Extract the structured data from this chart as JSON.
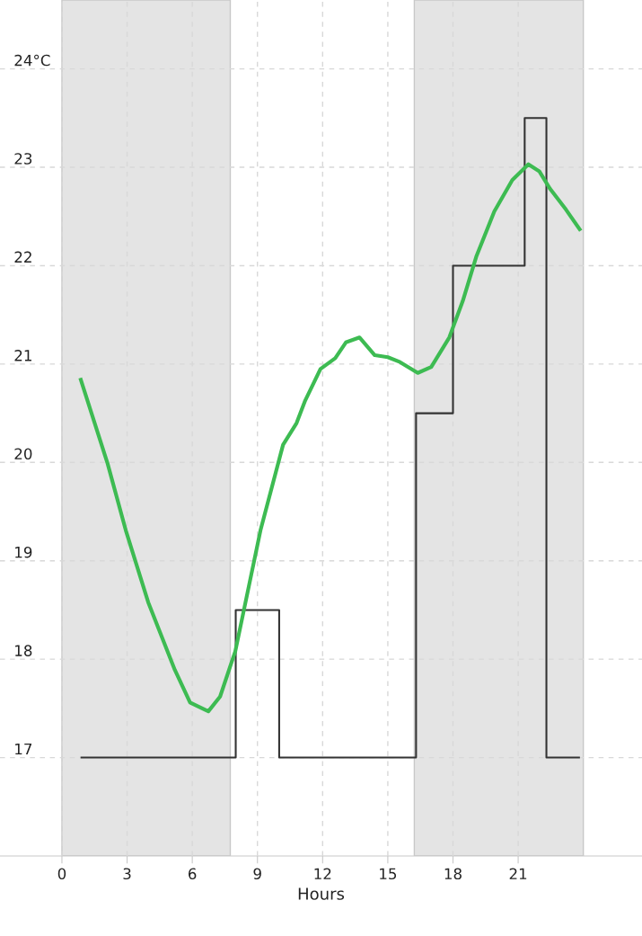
{
  "chart_data": {
    "type": "line",
    "xlabel": "Hours",
    "xlim": [
      -2.85,
      26.7
    ],
    "ylim": [
      16,
      24.7
    ],
    "xticks": [
      0,
      3,
      6,
      9,
      12,
      15,
      18,
      21
    ],
    "yticks": [
      17,
      18,
      19,
      20,
      21,
      22,
      23,
      {
        "value": 24,
        "label": "24°C"
      }
    ],
    "grid": true,
    "marker": "none",
    "line_style": "solid",
    "bands": [
      {
        "axis": "x",
        "from": 0,
        "to": 7.75,
        "color": "#e4e4e4"
      },
      {
        "axis": "x",
        "from": 16.22,
        "to": 24,
        "color": "#e4e4e4"
      }
    ],
    "series": [
      {
        "type": "step",
        "color": "#333333",
        "x": [
          0.9,
          8,
          10,
          16.3,
          18,
          21.3,
          22.3,
          23.8
        ],
        "values": [
          17,
          18.5,
          17,
          20.5,
          22,
          23.5,
          17,
          17
        ]
      },
      {
        "color": "#3dbb52",
        "x": [
          0.87,
          2.1,
          2.94,
          3.97,
          5.2,
          5.9,
          6.74,
          7.28,
          7.98,
          9.14,
          10.18,
          10.8,
          11.2,
          11.9,
          12.58,
          13.07,
          13.7,
          14.4,
          15.0,
          15.56,
          16.38,
          17.0,
          17.83,
          18.45,
          19.07,
          19.9,
          20.73,
          21.47,
          21.97,
          22.47,
          23.2,
          23.83
        ],
        "values": [
          20.84,
          19.99,
          19.31,
          18.58,
          17.89,
          17.56,
          17.47,
          17.62,
          18.08,
          19.31,
          20.18,
          20.4,
          20.63,
          20.95,
          21.06,
          21.22,
          21.27,
          21.09,
          21.07,
          21.02,
          20.91,
          20.97,
          21.27,
          21.64,
          22.09,
          22.55,
          22.87,
          23.03,
          22.96,
          22.78,
          22.57,
          22.37
        ]
      }
    ]
  }
}
